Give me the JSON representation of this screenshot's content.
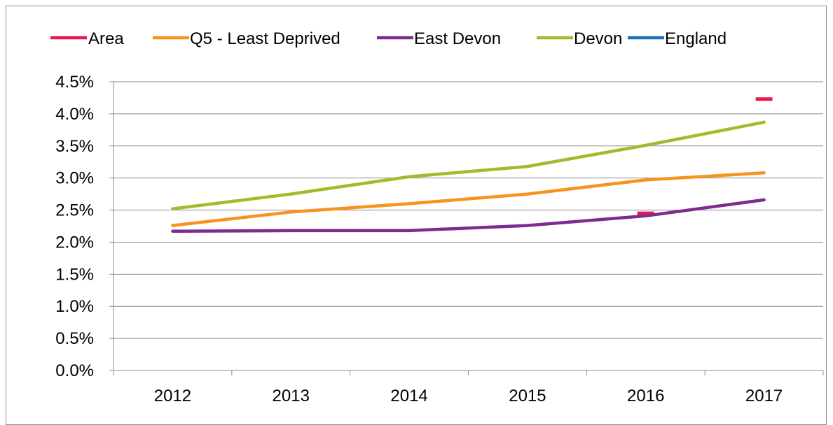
{
  "chart_data": {
    "type": "line",
    "title": "",
    "xlabel": "",
    "ylabel": "",
    "categories": [
      "2012",
      "2013",
      "2014",
      "2015",
      "2016",
      "2017"
    ],
    "ylim": [
      0,
      0.045
    ],
    "y_ticks": [
      "0.0%",
      "0.5%",
      "1.0%",
      "1.5%",
      "2.0%",
      "2.5%",
      "3.0%",
      "3.5%",
      "4.0%",
      "4.5%"
    ],
    "y_tick_values": [
      0,
      0.005,
      0.01,
      0.015,
      0.02,
      0.025,
      0.03,
      0.035,
      0.04,
      0.045
    ],
    "grid": true,
    "legend_position": "top",
    "series": [
      {
        "name": "Area",
        "color": "#e8174f",
        "style": "marker",
        "values": [
          null,
          null,
          null,
          null,
          0.0245,
          0.0423
        ]
      },
      {
        "name": "Q5 - Least Deprived",
        "color": "#f7941d",
        "style": "line",
        "values": [
          0.0226,
          0.0247,
          0.026,
          0.0275,
          0.0297,
          0.0308
        ]
      },
      {
        "name": "East Devon",
        "color": "#7b2c8e",
        "style": "line",
        "values": [
          0.0217,
          0.0218,
          0.0218,
          0.0226,
          0.0241,
          0.0266
        ]
      },
      {
        "name": "Devon",
        "color": "#a8b82c",
        "style": "line",
        "values": [
          0.0252,
          0.0275,
          0.0302,
          0.0318,
          0.0351,
          0.0387
        ]
      },
      {
        "name": "England",
        "color": "#1f6fb2",
        "style": "line",
        "values": [
          null,
          null,
          null,
          null,
          null,
          null
        ]
      }
    ]
  }
}
